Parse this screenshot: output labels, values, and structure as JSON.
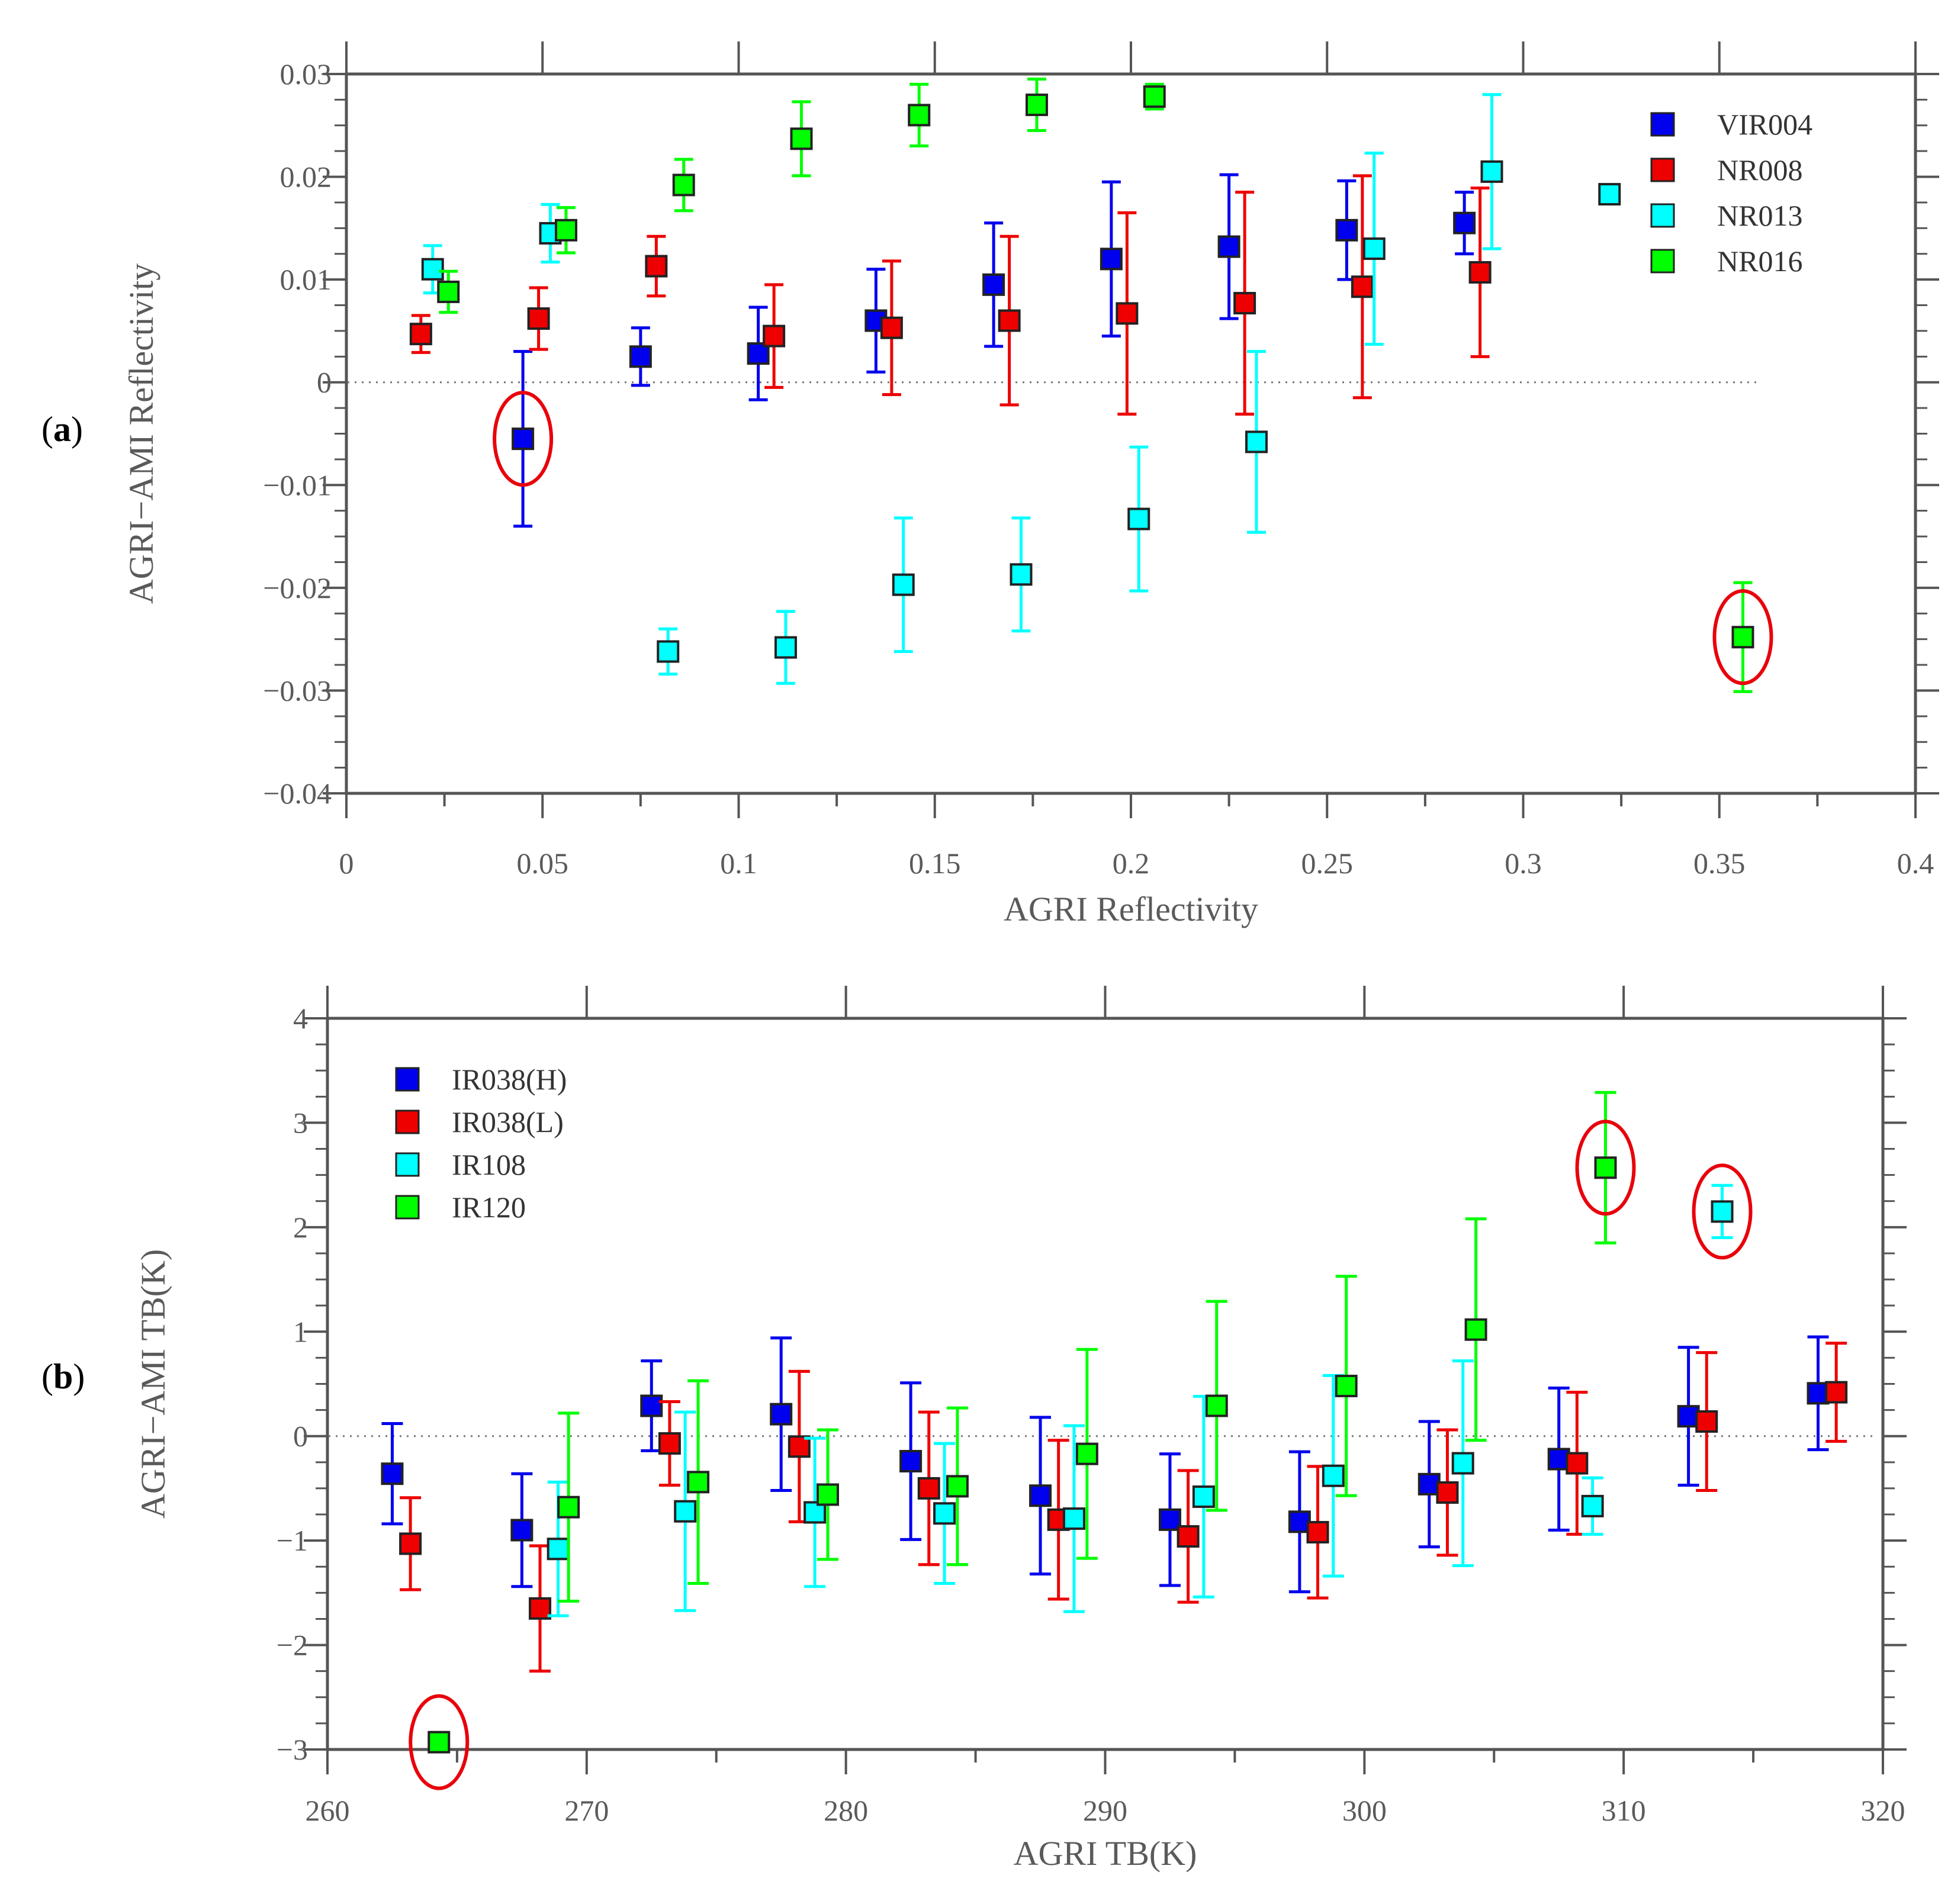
{
  "colors": {
    "VIR004": "#0000ee",
    "NR008": "#ee0000",
    "NR013": "#00ffff",
    "NR016": "#00ff00",
    "highlight": "#e8000b",
    "axis": "#555555"
  },
  "chart_data": [
    {
      "type": "scatter",
      "panel_label": "(a)",
      "xlabel": "AGRI Reflectivity",
      "ylabel": "AGRI−AMI Reflectivity",
      "xlim": [
        0,
        0.4
      ],
      "ylim": [
        -0.04,
        0.03
      ],
      "x_ticks": [
        "0",
        "0.05",
        "0.1",
        "0.15",
        "0.2",
        "0.25",
        "0.3",
        "0.35",
        "0.4"
      ],
      "y_ticks": [
        "−0.04",
        "−0.03",
        "−0.02",
        "−0.01",
        "0",
        "0.01",
        "0.02",
        "0.03"
      ],
      "zero_line": true,
      "legend_position": "top-right",
      "series": [
        {
          "name": "VIR004",
          "color_key": "VIR004",
          "points": [
            {
              "x": 0.045,
              "y": -0.0055,
              "err": 0.0085
            },
            {
              "x": 0.075,
              "y": 0.0025,
              "err": 0.0028
            },
            {
              "x": 0.105,
              "y": 0.0028,
              "err": 0.0045
            },
            {
              "x": 0.135,
              "y": 0.006,
              "err": 0.005
            },
            {
              "x": 0.165,
              "y": 0.0095,
              "err": 0.006
            },
            {
              "x": 0.195,
              "y": 0.012,
              "err": 0.0075
            },
            {
              "x": 0.225,
              "y": 0.0132,
              "err": 0.007
            },
            {
              "x": 0.255,
              "y": 0.0148,
              "err": 0.0048
            },
            {
              "x": 0.285,
              "y": 0.0155,
              "err": 0.003
            }
          ]
        },
        {
          "name": "NR008",
          "color_key": "NR008",
          "points": [
            {
              "x": 0.019,
              "y": 0.0047,
              "err": 0.0018
            },
            {
              "x": 0.049,
              "y": 0.0062,
              "err": 0.003
            },
            {
              "x": 0.079,
              "y": 0.0113,
              "err": 0.0029
            },
            {
              "x": 0.109,
              "y": 0.0045,
              "err": 0.005
            },
            {
              "x": 0.139,
              "y": 0.0053,
              "err": 0.0065
            },
            {
              "x": 0.169,
              "y": 0.006,
              "err": 0.0082
            },
            {
              "x": 0.199,
              "y": 0.0067,
              "err": 0.0098
            },
            {
              "x": 0.229,
              "y": 0.0077,
              "err": 0.0108
            },
            {
              "x": 0.259,
              "y": 0.0093,
              "err": 0.0108
            },
            {
              "x": 0.289,
              "y": 0.0107,
              "err": 0.0082
            }
          ]
        },
        {
          "name": "NR013",
          "color_key": "NR013",
          "points": [
            {
              "x": 0.022,
              "y": 0.011,
              "err": 0.0023
            },
            {
              "x": 0.052,
              "y": 0.0145,
              "err": 0.0028
            },
            {
              "x": 0.082,
              "y": -0.0262,
              "err": 0.0022
            },
            {
              "x": 0.112,
              "y": -0.0258,
              "err": 0.0035
            },
            {
              "x": 0.142,
              "y": -0.0197,
              "err": 0.0065
            },
            {
              "x": 0.172,
              "y": -0.0187,
              "err": 0.0055
            },
            {
              "x": 0.202,
              "y": -0.0133,
              "err": 0.007
            },
            {
              "x": 0.232,
              "y": -0.0058,
              "err": 0.0088
            },
            {
              "x": 0.262,
              "y": 0.013,
              "err": 0.0093
            },
            {
              "x": 0.292,
              "y": 0.0205,
              "err": 0.0075
            },
            {
              "x": 0.322,
              "y": 0.0183,
              "err": 0
            }
          ]
        },
        {
          "name": "NR016",
          "color_key": "NR016",
          "points": [
            {
              "x": 0.026,
              "y": 0.0088,
              "err": 0.002
            },
            {
              "x": 0.056,
              "y": 0.0148,
              "err": 0.0022
            },
            {
              "x": 0.086,
              "y": 0.0192,
              "err": 0.0025
            },
            {
              "x": 0.116,
              "y": 0.0237,
              "err": 0.0036
            },
            {
              "x": 0.146,
              "y": 0.026,
              "err": 0.003
            },
            {
              "x": 0.176,
              "y": 0.027,
              "err": 0.0025
            },
            {
              "x": 0.206,
              "y": 0.0278,
              "err": 0.0012
            },
            {
              "x": 0.356,
              "y": -0.0248,
              "err": 0.0053
            }
          ]
        }
      ],
      "highlighted": [
        {
          "series": "VIR004",
          "x": 0.045,
          "y": -0.0055
        },
        {
          "series": "NR016",
          "x": 0.356,
          "y": -0.0248
        }
      ]
    },
    {
      "type": "scatter",
      "panel_label": "(b)",
      "xlabel": "AGRI TB(K)",
      "ylabel": "AGRI−AMI TB(K)",
      "xlim": [
        260,
        320
      ],
      "ylim": [
        -3,
        4
      ],
      "x_ticks": [
        "260",
        "270",
        "280",
        "290",
        "300",
        "310",
        "320"
      ],
      "y_ticks": [
        "−3",
        "−2",
        "−1",
        "0",
        "1",
        "2",
        "3",
        "4"
      ],
      "zero_line": true,
      "legend_position": "top-left",
      "series": [
        {
          "name": "IR038(H)",
          "color_key": "VIR004",
          "points": [
            {
              "x": 262.5,
              "y": -0.36,
              "err": 0.48
            },
            {
              "x": 267.5,
              "y": -0.9,
              "err": 0.54
            },
            {
              "x": 272.5,
              "y": 0.29,
              "err": 0.43
            },
            {
              "x": 277.5,
              "y": 0.21,
              "err": 0.73
            },
            {
              "x": 282.5,
              "y": -0.24,
              "err": 0.75
            },
            {
              "x": 287.5,
              "y": -0.57,
              "err": 0.75
            },
            {
              "x": 292.5,
              "y": -0.8,
              "err": 0.63
            },
            {
              "x": 297.5,
              "y": -0.82,
              "err": 0.67
            },
            {
              "x": 302.5,
              "y": -0.46,
              "err": 0.6
            },
            {
              "x": 307.5,
              "y": -0.22,
              "err": 0.68
            },
            {
              "x": 312.5,
              "y": 0.19,
              "err": 0.66
            },
            {
              "x": 317.5,
              "y": 0.41,
              "err": 0.54
            }
          ]
        },
        {
          "name": "IR038(L)",
          "color_key": "NR008",
          "points": [
            {
              "x": 263.2,
              "y": -1.03,
              "err": 0.44
            },
            {
              "x": 268.2,
              "y": -1.65,
              "err": 0.6
            },
            {
              "x": 273.2,
              "y": -0.07,
              "err": 0.4
            },
            {
              "x": 278.2,
              "y": -0.1,
              "err": 0.72
            },
            {
              "x": 283.2,
              "y": -0.5,
              "err": 0.73
            },
            {
              "x": 288.2,
              "y": -0.8,
              "err": 0.76
            },
            {
              "x": 293.2,
              "y": -0.96,
              "err": 0.63
            },
            {
              "x": 298.2,
              "y": -0.92,
              "err": 0.63
            },
            {
              "x": 303.2,
              "y": -0.54,
              "err": 0.6
            },
            {
              "x": 308.2,
              "y": -0.26,
              "err": 0.68
            },
            {
              "x": 313.2,
              "y": 0.14,
              "err": 0.66
            },
            {
              "x": 318.2,
              "y": 0.42,
              "err": 0.47
            }
          ]
        },
        {
          "name": "IR108",
          "color_key": "NR013",
          "points": [
            {
              "x": 268.9,
              "y": -1.08,
              "err": 0.64
            },
            {
              "x": 273.8,
              "y": -0.72,
              "err": 0.95
            },
            {
              "x": 278.8,
              "y": -0.73,
              "err": 0.71
            },
            {
              "x": 283.8,
              "y": -0.74,
              "err": 0.67
            },
            {
              "x": 288.8,
              "y": -0.79,
              "err": 0.89
            },
            {
              "x": 293.8,
              "y": -0.58,
              "err": 0.96
            },
            {
              "x": 298.8,
              "y": -0.38,
              "err": 0.96
            },
            {
              "x": 303.8,
              "y": -0.26,
              "err": 0.98
            },
            {
              "x": 308.8,
              "y": -0.67,
              "err": 0.27
            },
            {
              "x": 313.8,
              "y": 2.15,
              "err": 0.25
            }
          ]
        },
        {
          "name": "IR120",
          "color_key": "NR016",
          "points": [
            {
              "x": 264.3,
              "y": -2.93,
              "err": 0
            },
            {
              "x": 269.3,
              "y": -0.68,
              "err": 0.9
            },
            {
              "x": 274.3,
              "y": -0.44,
              "err": 0.97
            },
            {
              "x": 279.3,
              "y": -0.56,
              "err": 0.62
            },
            {
              "x": 284.3,
              "y": -0.48,
              "err": 0.75
            },
            {
              "x": 289.3,
              "y": -0.17,
              "err": 1.0
            },
            {
              "x": 294.3,
              "y": 0.29,
              "err": 1.0
            },
            {
              "x": 299.3,
              "y": 0.48,
              "err": 1.05
            },
            {
              "x": 304.3,
              "y": 1.02,
              "err": 1.06
            },
            {
              "x": 309.3,
              "y": 2.57,
              "err": 0.72
            }
          ]
        }
      ],
      "highlighted": [
        {
          "series": "IR120",
          "x": 264.3,
          "y": -2.93
        },
        {
          "series": "IR120",
          "x": 309.3,
          "y": 2.57
        },
        {
          "series": "IR108",
          "x": 313.8,
          "y": 2.15
        }
      ]
    }
  ]
}
